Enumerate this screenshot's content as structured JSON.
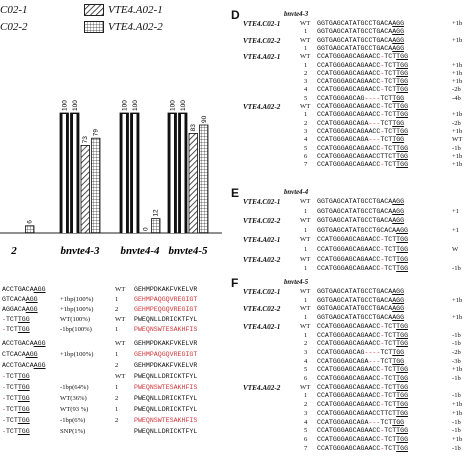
{
  "legend": [
    {
      "label": "C02-1",
      "fill": "white"
    },
    {
      "label": "C02-2",
      "fill": "white"
    },
    {
      "label": "VTE4.A02-1",
      "fill": "hatch"
    },
    {
      "label": "VTE4.A02-2",
      "fill": "grid"
    }
  ],
  "chart_data": {
    "type": "bar",
    "categories": [
      "2",
      "bnvte4-3",
      "bnvte4-4",
      "bnvte4-5"
    ],
    "series": [
      {
        "name": "VTE4.C02-1",
        "values": [
          null,
          100,
          100,
          100
        ]
      },
      {
        "name": "VTE4.C02-2",
        "values": [
          null,
          100,
          100,
          100
        ]
      },
      {
        "name": "VTE4.A02-1",
        "values": [
          null,
          73,
          0,
          83
        ]
      },
      {
        "name": "VTE4.A02-2",
        "values": [
          6,
          79,
          12,
          90
        ]
      }
    ],
    "bar_labels": {
      "bnvte4-3": [
        "100",
        "100",
        "73",
        "79"
      ],
      "bnvte4-4": [
        "100",
        "100",
        "0",
        "12"
      ],
      "bnvte4-5": [
        "100",
        "100",
        "83",
        "90"
      ],
      "2": [
        "",
        "",
        "",
        "6"
      ]
    },
    "xlabels": [
      "2",
      "bnvte4-3",
      "bnvte4-4",
      "bnvte4-5"
    ]
  },
  "left_bottom": {
    "block1_rows": [
      {
        "seq": "ACCTGACAAGG",
        "mut": "",
        "result": "",
        "wt": "WT",
        "pep": "GEHMPDKAKFVKELVR"
      },
      {
        "seq": "GTCACAAGG",
        "mut": "+1bp(100%)",
        "result": "+1bp(100%)",
        "wt": "1",
        "pep": "GEHMPAQGQVREGIGT"
      },
      {
        "seq": "AGGACAAGG",
        "mut": "",
        "result": "+1bp(100%)",
        "wt": "2",
        "pep": "GEHMPEQGQVREGIGT"
      },
      {
        "seq": "-TCTTGG",
        "mut": "",
        "result": "WT(100%)",
        "wt": "WT",
        "pep": "PWEQNLLDRICKTFYL"
      },
      {
        "seq": "-TCTTGG",
        "mut": "",
        "result": "-1bp(100%)",
        "wt": "1",
        "pep": "PWEQNSWTESAKHFIS"
      }
    ],
    "block2_rows": [
      {
        "seq": "ACCTGACAAGG",
        "result": "",
        "wt": "WT",
        "pep": "GEHMPDKAKFVKELVR"
      },
      {
        "seq": "CTCACAAGG",
        "result": "+1bp(100%)",
        "wt": "1",
        "pep": "GEHMPAQGQVREGIGT"
      },
      {
        "seq": "ACCTGACAAGG",
        "result": "",
        "wt": "2",
        "pep": "GEHMPDKAKFVKELVR"
      },
      {
        "seq": "-TCTTGG",
        "result": "",
        "wt": "WT",
        "pep": "PWEQNLLDRICKTFYL"
      },
      {
        "seq": "-TCTTGG",
        "result": "-1bp(64%)",
        "wt": "1",
        "pep": "PWEQNSWTESAKHFIS"
      },
      {
        "seq": "-TCTTGG",
        "result": "WT(36%)",
        "wt": "2",
        "pep": "PWEQNLLDRICKTFYL"
      },
      {
        "seq": "-TCTTGG",
        "result": "WT(93 %)",
        "wt": "1",
        "pep": "PWEQNLLDRICKTFYL"
      },
      {
        "seq": "-TCTTGG",
        "result": "-1bp(6%)",
        "wt": "2",
        "pep": "PWEQNSWTESAKHFIS"
      },
      {
        "seq": "-TCTTGG",
        "result": "SNP(1%)",
        "wt": "",
        "pep": "PWEQNLLDRICKTFYL"
      }
    ]
  },
  "panel_D": {
    "letter": "D",
    "title": "bnvte4-3",
    "rows": [
      {
        "label": "VTE4.C02-1",
        "n": "WT",
        "seq": "GGTGAGCATATGCCTGACAAGG",
        "res": "+1b"
      },
      {
        "label": "",
        "n": "1",
        "seq": "GGTGAGCATATGCCTGACAAGG",
        "res": ""
      },
      {
        "label": "VTE4.C02-2",
        "n": "WT",
        "seq": "GGTGAGCATATGCCTGACAAGG",
        "res": "+1b"
      },
      {
        "label": "",
        "n": "1",
        "seq": "GGTGAGCATATGCCTGACAAGG",
        "res": ""
      },
      {
        "label": "VTE4.A02-1",
        "n": "WT",
        "seq": "CCATGGGAGCAGAACC-TCTTGG",
        "res": ""
      },
      {
        "label": "",
        "n": "1",
        "seq": "CCATGGGAGCAGAACC-TCTTGG",
        "res": "+1b"
      },
      {
        "label": "",
        "n": "2",
        "seq": "CCATGGGAGCAGAACC-TCTTGG",
        "res": "+1b"
      },
      {
        "label": "",
        "n": "3",
        "seq": "CCATGGGAGCAGAACC-TCTTGG",
        "res": "+1b"
      },
      {
        "label": "",
        "n": "4",
        "seq": "CCATGGGAGCAGAACC-TCTTGG",
        "res": "-2b"
      },
      {
        "label": "",
        "n": "5",
        "seq": "CCATGGGAGCAG----TCTTGG",
        "res": "-4b"
      },
      {
        "label": "VTE4.A02-2",
        "n": "WT",
        "seq": "CCATGGGAGCAGAACC-TCTTGG",
        "res": ""
      },
      {
        "label": "",
        "n": "1",
        "seq": "CCATGGGAGCAGAACC-TCTTGG",
        "res": "+1b"
      },
      {
        "label": "",
        "n": "2",
        "seq": "CCATGGGAGCAGA---TCTTGG",
        "res": "-2b"
      },
      {
        "label": "",
        "n": "3",
        "seq": "CCATGGGAGCAGAACC-TCTTGG",
        "res": "+1b"
      },
      {
        "label": "",
        "n": "4",
        "seq": "CCATGGGAGCAGA---TCTTGG",
        "res": "WT"
      },
      {
        "label": "",
        "n": "5",
        "seq": "CCATGGGAGCAGAACC-TCTTGG",
        "res": "-1b"
      },
      {
        "label": "",
        "n": "6",
        "seq": "CCATGGGAGCAGAACCTTCTTGG",
        "res": "+1b"
      },
      {
        "label": "",
        "n": "7",
        "seq": "CCATGGGAGCAGAACC-TCTTGG",
        "res": "+1b"
      }
    ]
  },
  "panel_E": {
    "letter": "E",
    "title": "bnvte4-4",
    "rows": [
      {
        "label": "VTE4.C02-1",
        "n": "WT",
        "seq": "GGTGAGCATATGCCTGACAAGG",
        "res": ""
      },
      {
        "label": "",
        "n": "1",
        "seq": "GGTGAGCATATGCCTGACAAGG",
        "res": "+1"
      },
      {
        "label": "VTE4.C02-2",
        "n": "WT",
        "seq": "GGTGAGCATATGCCTGACAAGG",
        "res": ""
      },
      {
        "label": "",
        "n": "1",
        "seq": "GGTGAGCATATGCCTGCACAAGG",
        "res": "+1"
      },
      {
        "label": "VTE4.A02-1",
        "n": "WT",
        "seq": "CCATGGGAGCAGAACC-TCTTGG",
        "res": ""
      },
      {
        "label": "",
        "n": "1",
        "seq": "CCATGGGAGCAGAACC-TCTTGG",
        "res": "W"
      },
      {
        "label": "VTE4.A02-2",
        "n": "WT",
        "seq": "CCATGGGAGCAGAACC-TCTTGG",
        "res": ""
      },
      {
        "label": "",
        "n": "1",
        "seq": "CCATGGGAGCAGAACC-TCTTGG",
        "res": "-1b"
      }
    ]
  },
  "panel_F": {
    "letter": "F",
    "title": "bnvte4-5",
    "rows": [
      {
        "label": "VTE4.C02-1",
        "n": "WT",
        "seq": "GGTGAGCATATGCCTGACAAGG",
        "res": ""
      },
      {
        "label": "",
        "n": "1",
        "seq": "GGTGAGCATATGCCTGACAAGG",
        "res": "+1b"
      },
      {
        "label": "VTE4.C02-2",
        "n": "WT",
        "seq": "GGTGAGCATATGCCTGACAAGG",
        "res": ""
      },
      {
        "label": "",
        "n": "1",
        "seq": "GGTGAGCATATGCCTGACAAGG",
        "res": "+1b"
      },
      {
        "label": "VTE4.A02-1",
        "n": "WT",
        "seq": "CCATGGGAGCAGAACC-TCTTGG",
        "res": ""
      },
      {
        "label": "",
        "n": "1",
        "seq": "CCATGGGAGCAGAACC-TCTTGG",
        "res": "-1b"
      },
      {
        "label": "",
        "n": "2",
        "seq": "CCATGGGAGCAGAACC-TCTTGG",
        "res": "-1b"
      },
      {
        "label": "",
        "n": "3",
        "seq": "CCATGGGAGCAG----TCTTGG",
        "res": "-2b"
      },
      {
        "label": "",
        "n": "4",
        "seq": "CCATGGGAGCAGA---TCTTGG",
        "res": "-3b"
      },
      {
        "label": "",
        "n": "5",
        "seq": "CCATGGGAGCAGAACC-TCTTGG",
        "res": "+1b"
      },
      {
        "label": "",
        "n": "6",
        "seq": "CCATGGGAGCAGAACC-TCTTGG",
        "res": "-1b"
      },
      {
        "label": "VTE4.A02-2",
        "n": "WT",
        "seq": "CCATGGGAGCAGAACC-TCTTGG",
        "res": ""
      },
      {
        "label": "",
        "n": "1",
        "seq": "CCATGGGAGCAGAACC-TCTTGG",
        "res": "-1b"
      },
      {
        "label": "",
        "n": "2",
        "seq": "CCATGGGAGCAGAACC-TCTTGG",
        "res": "+1b"
      },
      {
        "label": "",
        "n": "3",
        "seq": "CCATGGGAGCAGAACCTTCTTGG",
        "res": "+1b"
      },
      {
        "label": "",
        "n": "4",
        "seq": "CCATGGGAGCAGA---TCTTGG",
        "res": "-1b"
      },
      {
        "label": "",
        "n": "5",
        "seq": "CCATGGGAGCAGAACC-TCTTGG",
        "res": "-1b"
      },
      {
        "label": "",
        "n": "6",
        "seq": "CCATGGGAGCAGAACC-TCTTGG",
        "res": "+1b"
      },
      {
        "label": "",
        "n": "7",
        "seq": "CCATGGGAGCAGAACC-TCTTGG",
        "res": "-1b"
      }
    ]
  }
}
